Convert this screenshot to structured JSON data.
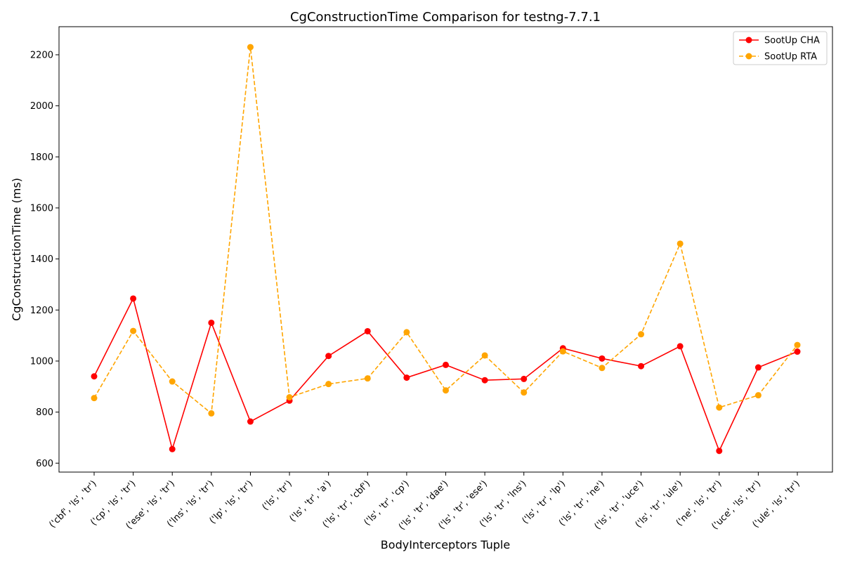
{
  "chart_data": {
    "type": "line",
    "title": "CgConstructionTime Comparison for testng-7.7.1",
    "xlabel": "BodyInterceptors Tuple",
    "ylabel": "CgConstructionTime (ms)",
    "ylim": [
      565,
      2310
    ],
    "yticks": [
      600,
      800,
      1000,
      1200,
      1400,
      1600,
      1800,
      2000,
      2200
    ],
    "grid": false,
    "legend_position": "top-right",
    "categories": [
      "('cbf', 'ls', 'tr')",
      "('cp', 'ls', 'tr')",
      "('ese', 'ls', 'tr')",
      "('lns', 'ls', 'tr')",
      "('lp', 'ls', 'tr')",
      "('ls', 'tr')",
      "('ls', 'tr', 'a')",
      "('ls', 'tr', 'cbf')",
      "('ls', 'tr', 'cp')",
      "('ls', 'tr', 'dae')",
      "('ls', 'tr', 'ese')",
      "('ls', 'tr', 'lns')",
      "('ls', 'tr', 'lp')",
      "('ls', 'tr', 'ne')",
      "('ls', 'tr', 'uce')",
      "('ls', 'tr', 'ule')",
      "('ne', 'ls', 'tr')",
      "('uce', 'ls', 'tr')",
      "('ule', 'ls', 'tr')"
    ],
    "series": [
      {
        "name": "SootUp CHA",
        "color": "#ff0000",
        "style": "solid",
        "values": [
          940,
          1245,
          655,
          1150,
          763,
          845,
          1020,
          1117,
          935,
          985,
          925,
          930,
          1050,
          1010,
          980,
          1058,
          648,
          975,
          1037
        ]
      },
      {
        "name": "SootUp RTA",
        "color": "#ffa500",
        "style": "dashed",
        "values": [
          855,
          1118,
          920,
          795,
          2230,
          858,
          910,
          932,
          1113,
          885,
          1022,
          877,
          1038,
          973,
          1105,
          1460,
          818,
          866,
          1063
        ]
      }
    ]
  }
}
